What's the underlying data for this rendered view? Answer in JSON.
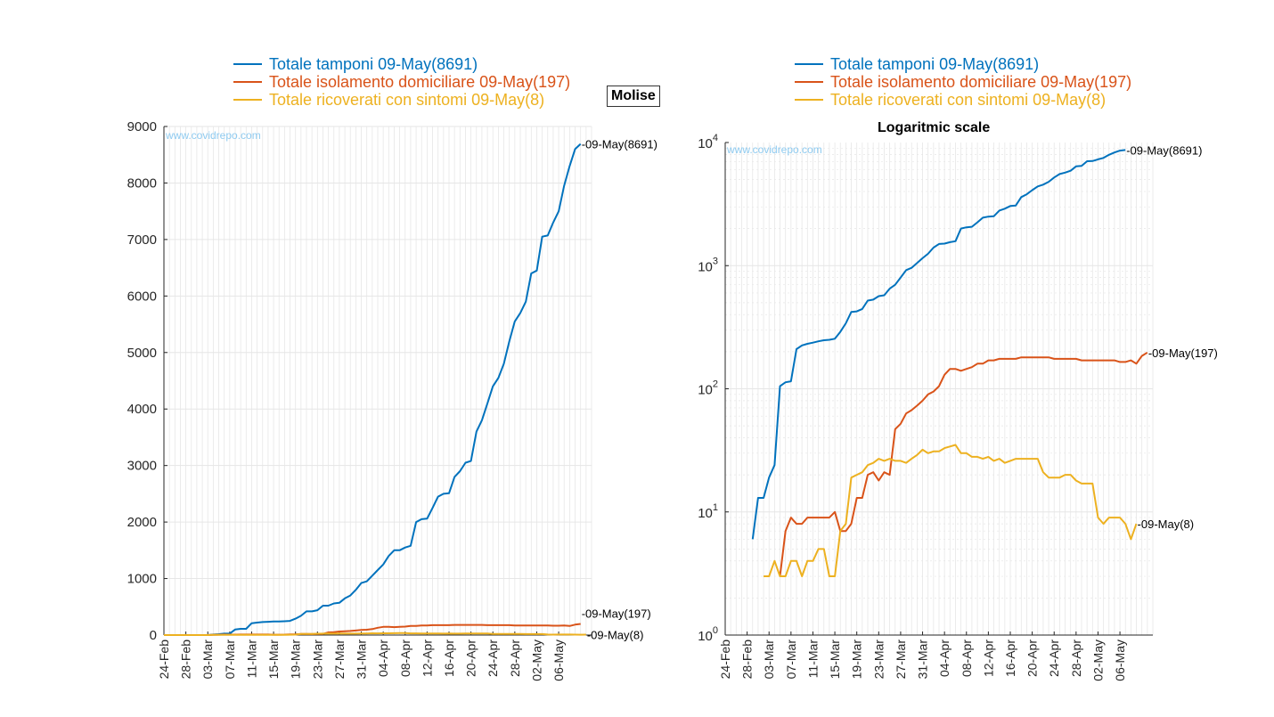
{
  "region_label": "Molise",
  "watermark": "www.covidrepo.com",
  "colors": {
    "blue": "#0072BD",
    "orange": "#D95319",
    "yellow": "#EDB120",
    "grid": "#e6e6e6",
    "axis": "#262626",
    "watermark": "#8fcbf0"
  },
  "legend": [
    {
      "label": "Totale tamponi 09-May(8691)",
      "color": "#0072BD"
    },
    {
      "label": "Totale isolamento domiciliare 09-May(197)",
      "color": "#D95319"
    },
    {
      "label": "Totale ricoverati con sintomi 09-May(8)",
      "color": "#EDB120"
    }
  ],
  "chart_data": [
    {
      "type": "line",
      "title": "",
      "xlabel": "",
      "ylabel": "",
      "ylim": [
        0,
        9000
      ],
      "yscale": "linear",
      "ytick_labels": [
        "0",
        "1000",
        "2000",
        "3000",
        "4000",
        "5000",
        "6000",
        "7000",
        "8000",
        "9000"
      ],
      "x_start": "24-Feb",
      "x_end": "12-May",
      "xtick_labels": [
        "24-Feb",
        "28-Feb",
        "03-Mar",
        "07-Mar",
        "11-Mar",
        "15-Mar",
        "19-Mar",
        "23-Mar",
        "27-Mar",
        "31-Mar",
        "04-Apr",
        "08-Apr",
        "12-Apr",
        "16-Apr",
        "20-Apr",
        "24-Apr",
        "28-Apr",
        "02-May",
        "06-May"
      ],
      "grid": true,
      "end_labels": [
        "-09-May(8691)",
        "-09-May(197)",
        "-09-May(8)"
      ],
      "series": [
        {
          "name": "Totale tamponi 09-May(8691)",
          "color": "#0072BD",
          "start": "24-Feb",
          "values": [
            0,
            0,
            0,
            0,
            0,
            0,
            0,
            0,
            0,
            10,
            15,
            25,
            25,
            100,
            110,
            110,
            210,
            220,
            230,
            235,
            240,
            240,
            245,
            250,
            290,
            340,
            420,
            420,
            440,
            520,
            520,
            560,
            570,
            650,
            700,
            800,
            920,
            950,
            1050,
            1150,
            1250,
            1400,
            1500,
            1500,
            1550,
            1580,
            2000,
            2050,
            2060,
            2250,
            2450,
            2500,
            2510,
            2800,
            2900,
            3050,
            3080,
            3600,
            3800,
            4100,
            4400,
            4550,
            4800,
            5200,
            5550,
            5700,
            5900,
            6400,
            6450,
            7050,
            7070,
            7300,
            7500,
            7950,
            8300,
            8600,
            8691
          ]
        },
        {
          "name": "Totale isolamento domiciliare 09-May(197)",
          "color": "#D95319",
          "start": "24-Feb",
          "values": [
            0,
            0,
            0,
            0,
            0,
            0,
            0,
            0,
            0,
            3,
            7,
            9,
            8,
            8,
            9,
            9,
            9,
            9,
            9,
            10,
            7,
            7,
            8,
            13,
            13,
            20,
            21,
            18,
            21,
            20,
            47,
            52,
            63,
            67,
            73,
            80,
            90,
            95,
            105,
            130,
            145,
            145,
            140,
            145,
            150,
            160,
            160,
            170,
            170,
            175,
            175,
            175,
            175,
            180,
            180,
            180,
            180,
            180,
            180,
            175,
            175,
            175,
            175,
            175,
            170,
            170,
            170,
            170,
            170,
            170,
            170,
            165,
            165,
            170,
            160,
            185,
            197
          ]
        },
        {
          "name": "Totale ricoverati con sintomi 09-May(8)",
          "color": "#EDB120",
          "start": "24-Feb",
          "values": [
            0,
            0,
            0,
            0,
            0,
            0,
            0,
            0,
            0,
            3,
            3,
            4,
            3,
            3,
            4,
            4,
            3,
            4,
            4,
            5,
            5,
            3,
            3,
            7,
            8,
            19,
            20,
            21,
            24,
            25,
            27,
            26,
            27,
            26,
            26,
            25,
            27,
            29,
            32,
            30,
            31,
            31,
            33,
            34,
            35,
            30,
            30,
            28,
            28,
            27,
            28,
            26,
            27,
            25,
            26,
            27,
            27,
            27,
            27,
            27,
            21,
            19,
            19,
            19,
            20,
            20,
            18,
            17,
            17,
            17,
            9,
            8,
            9,
            9,
            9,
            8,
            6,
            8
          ]
        }
      ]
    },
    {
      "type": "line",
      "title": "Logaritmic scale",
      "xlabel": "",
      "ylabel": "",
      "ylim": [
        1,
        10000
      ],
      "yscale": "log",
      "ytick_labels": [
        "10^0",
        "10^1",
        "10^2",
        "10^3",
        "10^4"
      ],
      "x_start": "24-Feb",
      "x_end": "12-May",
      "xtick_labels": [
        "24-Feb",
        "28-Feb",
        "03-Mar",
        "07-Mar",
        "11-Mar",
        "15-Mar",
        "19-Mar",
        "23-Mar",
        "27-Mar",
        "31-Mar",
        "04-Apr",
        "08-Apr",
        "12-Apr",
        "16-Apr",
        "20-Apr",
        "24-Apr",
        "28-Apr",
        "02-May",
        "06-May"
      ],
      "grid": true,
      "end_labels": [
        "-09-May(8691)",
        "-09-May(197)",
        "-09-May(8)"
      ],
      "series": [
        {
          "name": "Totale tamponi 09-May(8691)",
          "color": "#0072BD",
          "start": "29-Feb",
          "values": [
            6,
            13,
            13,
            19,
            24,
            105,
            113,
            115,
            210,
            225,
            232,
            237,
            243,
            248,
            250,
            255,
            290,
            340,
            420,
            425,
            445,
            520,
            530,
            565,
            575,
            650,
            700,
            800,
            920,
            960,
            1050,
            1150,
            1250,
            1400,
            1500,
            1510,
            1550,
            1580,
            2000,
            2050,
            2070,
            2250,
            2450,
            2500,
            2520,
            2800,
            2900,
            3050,
            3080,
            3600,
            3800,
            4100,
            4400,
            4550,
            4800,
            5200,
            5550,
            5700,
            5900,
            6400,
            6450,
            7050,
            7070,
            7300,
            7500,
            7950,
            8300,
            8600,
            8691
          ]
        },
        {
          "name": "Totale isolamento domiciliare 09-May(197)",
          "color": "#D95319",
          "start": "05-Mar",
          "values": [
            3,
            7,
            9,
            8,
            8,
            9,
            9,
            9,
            9,
            9,
            10,
            7,
            7,
            8,
            13,
            13,
            20,
            21,
            18,
            21,
            20,
            47,
            52,
            63,
            67,
            73,
            80,
            90,
            95,
            105,
            130,
            145,
            145,
            140,
            145,
            150,
            160,
            160,
            170,
            170,
            175,
            175,
            175,
            175,
            180,
            180,
            180,
            180,
            180,
            180,
            175,
            175,
            175,
            175,
            175,
            170,
            170,
            170,
            170,
            170,
            170,
            170,
            165,
            165,
            170,
            160,
            185,
            197
          ]
        },
        {
          "name": "Totale ricoverati con sintomi 09-May(8)",
          "color": "#EDB120",
          "start": "02-Mar",
          "values": [
            3,
            3,
            4,
            3,
            3,
            4,
            4,
            3,
            4,
            4,
            5,
            5,
            3,
            3,
            7,
            8,
            19,
            20,
            21,
            24,
            25,
            27,
            26,
            27,
            26,
            26,
            25,
            27,
            29,
            32,
            30,
            31,
            31,
            33,
            34,
            35,
            30,
            30,
            28,
            28,
            27,
            28,
            26,
            27,
            25,
            26,
            27,
            27,
            27,
            27,
            27,
            21,
            19,
            19,
            19,
            20,
            20,
            18,
            17,
            17,
            17,
            9,
            8,
            9,
            9,
            9,
            8,
            6,
            8
          ]
        }
      ]
    }
  ]
}
